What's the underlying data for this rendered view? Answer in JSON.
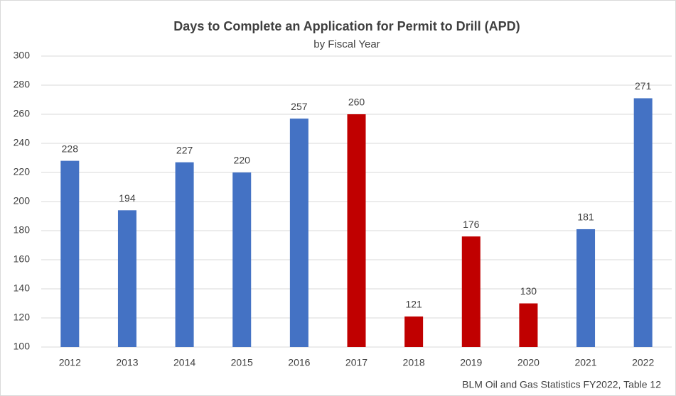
{
  "chart_data": {
    "type": "bar",
    "title": "Days to Complete an Application for Permit to Drill (APD)",
    "subtitle": "by Fiscal Year",
    "source": "BLM Oil and Gas Statistics FY2022, Table 12",
    "categories": [
      "2012",
      "2013",
      "2014",
      "2015",
      "2016",
      "2017",
      "2018",
      "2019",
      "2020",
      "2021",
      "2022"
    ],
    "values": [
      228,
      194,
      227,
      220,
      257,
      260,
      121,
      176,
      130,
      181,
      271
    ],
    "colors": [
      "#4472c4",
      "#4472c4",
      "#4472c4",
      "#4472c4",
      "#4472c4",
      "#c00000",
      "#c00000",
      "#c00000",
      "#c00000",
      "#4472c4",
      "#4472c4"
    ],
    "ylim": [
      100,
      300
    ],
    "yticks": [
      100,
      120,
      140,
      160,
      180,
      200,
      220,
      240,
      260,
      280,
      300
    ],
    "grid": true
  }
}
